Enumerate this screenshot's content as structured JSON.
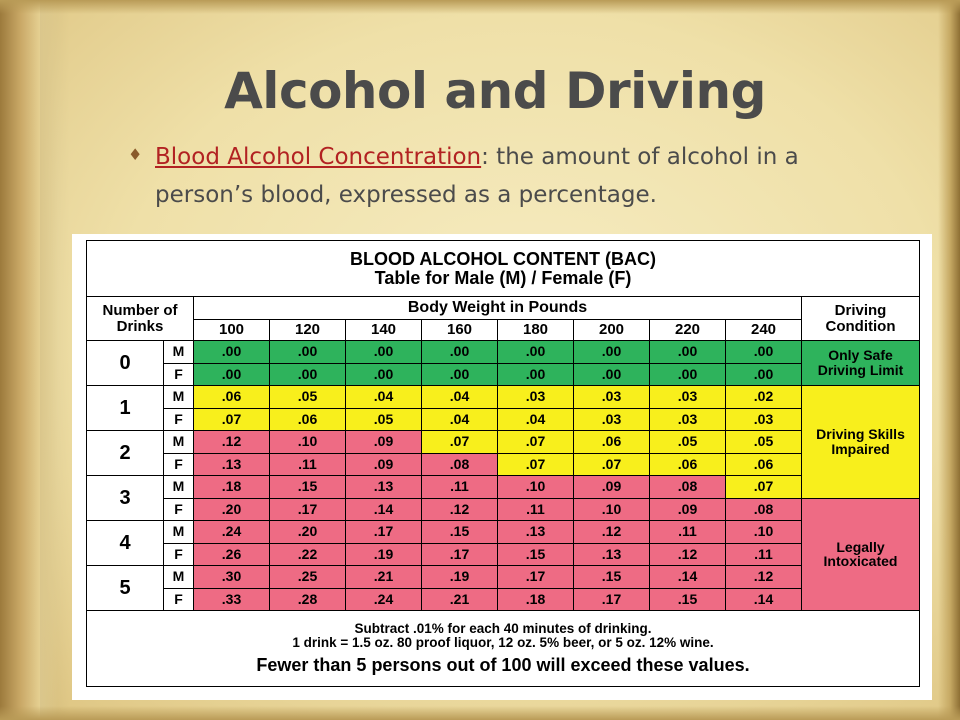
{
  "slide": {
    "title": "Alcohol and Driving",
    "bullet_term": "Blood Alcohol Concentration",
    "bullet_rest": ": the amount of alcohol in a person’s blood, expressed as a percentage."
  },
  "table": {
    "title_line1": "BLOOD ALCOHOL CONTENT (BAC)",
    "title_line2": "Table for Male (M) / Female (F)",
    "drinks_header_line1": "Number of",
    "drinks_header_line2": "Drinks",
    "weight_header": "Body Weight in Pounds",
    "condition_header_line1": "Driving",
    "condition_header_line2": "Condition",
    "weights": [
      "100",
      "120",
      "140",
      "160",
      "180",
      "200",
      "220",
      "240"
    ],
    "rows": [
      {
        "drinks": "0",
        "sex": "M",
        "values": [
          ".00",
          ".00",
          ".00",
          ".00",
          ".00",
          ".00",
          ".00",
          ".00"
        ],
        "colors": [
          "g",
          "g",
          "g",
          "g",
          "g",
          "g",
          "g",
          "g"
        ]
      },
      {
        "drinks": "0",
        "sex": "F",
        "values": [
          ".00",
          ".00",
          ".00",
          ".00",
          ".00",
          ".00",
          ".00",
          ".00"
        ],
        "colors": [
          "g",
          "g",
          "g",
          "g",
          "g",
          "g",
          "g",
          "g"
        ]
      },
      {
        "drinks": "1",
        "sex": "M",
        "values": [
          ".06",
          ".05",
          ".04",
          ".04",
          ".03",
          ".03",
          ".03",
          ".02"
        ],
        "colors": [
          "y",
          "y",
          "y",
          "y",
          "y",
          "y",
          "y",
          "y"
        ]
      },
      {
        "drinks": "1",
        "sex": "F",
        "values": [
          ".07",
          ".06",
          ".05",
          ".04",
          ".04",
          ".03",
          ".03",
          ".03"
        ],
        "colors": [
          "y",
          "y",
          "y",
          "y",
          "y",
          "y",
          "y",
          "y"
        ]
      },
      {
        "drinks": "2",
        "sex": "M",
        "values": [
          ".12",
          ".10",
          ".09",
          ".07",
          ".07",
          ".06",
          ".05",
          ".05"
        ],
        "colors": [
          "r",
          "r",
          "r",
          "y",
          "y",
          "y",
          "y",
          "y"
        ]
      },
      {
        "drinks": "2",
        "sex": "F",
        "values": [
          ".13",
          ".11",
          ".09",
          ".08",
          ".07",
          ".07",
          ".06",
          ".06"
        ],
        "colors": [
          "r",
          "r",
          "r",
          "r",
          "y",
          "y",
          "y",
          "y"
        ]
      },
      {
        "drinks": "3",
        "sex": "M",
        "values": [
          ".18",
          ".15",
          ".13",
          ".11",
          ".10",
          ".09",
          ".08",
          ".07"
        ],
        "colors": [
          "r",
          "r",
          "r",
          "r",
          "r",
          "r",
          "r",
          "y"
        ]
      },
      {
        "drinks": "3",
        "sex": "F",
        "values": [
          ".20",
          ".17",
          ".14",
          ".12",
          ".11",
          ".10",
          ".09",
          ".08"
        ],
        "colors": [
          "r",
          "r",
          "r",
          "r",
          "r",
          "r",
          "r",
          "r"
        ]
      },
      {
        "drinks": "4",
        "sex": "M",
        "values": [
          ".24",
          ".20",
          ".17",
          ".15",
          ".13",
          ".12",
          ".11",
          ".10"
        ],
        "colors": [
          "r",
          "r",
          "r",
          "r",
          "r",
          "r",
          "r",
          "r"
        ]
      },
      {
        "drinks": "4",
        "sex": "F",
        "values": [
          ".26",
          ".22",
          ".19",
          ".17",
          ".15",
          ".13",
          ".12",
          ".11"
        ],
        "colors": [
          "r",
          "r",
          "r",
          "r",
          "r",
          "r",
          "r",
          "r"
        ]
      },
      {
        "drinks": "5",
        "sex": "M",
        "values": [
          ".30",
          ".25",
          ".21",
          ".19",
          ".17",
          ".15",
          ".14",
          ".12"
        ],
        "colors": [
          "r",
          "r",
          "r",
          "r",
          "r",
          "r",
          "r",
          "r"
        ]
      },
      {
        "drinks": "5",
        "sex": "F",
        "values": [
          ".33",
          ".28",
          ".24",
          ".21",
          ".18",
          ".17",
          ".15",
          ".14"
        ],
        "colors": [
          "r",
          "r",
          "r",
          "r",
          "r",
          "r",
          "r",
          "r"
        ]
      }
    ],
    "conditions": [
      {
        "line1": "Only Safe",
        "line2": "Driving Limit",
        "color": "#2eb35c"
      },
      {
        "line1": "Driving Skills",
        "line2": "Impaired",
        "color": "#f8ef1c"
      },
      {
        "line1": "Legally",
        "line2": "Intoxicated",
        "color": "#ee6b84"
      }
    ],
    "footer_line1": "Subtract .01% for each 40 minutes of drinking.",
    "footer_line2": "1 drink = 1.5 oz. 80 proof liquor, 12 oz. 5% beer, or 5 oz. 12% wine.",
    "footer_line3": "Fewer than 5 persons out of 100 will exceed these values."
  },
  "colors": {
    "green": "#2eb35c",
    "yellow": "#f8ef1c",
    "red": "#ee6b84",
    "title_text": "#4b4b4b",
    "link_text": "#b22222"
  }
}
